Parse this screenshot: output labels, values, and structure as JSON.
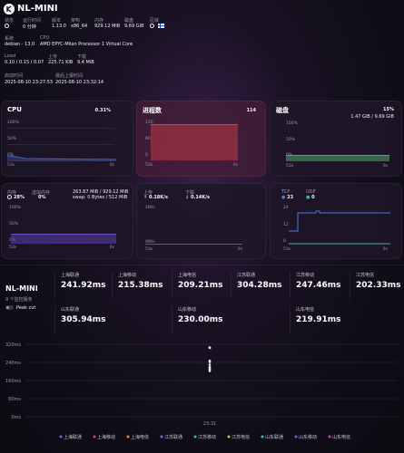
{
  "header": {
    "title": "NL-MINI",
    "status_label": "状态",
    "status_value": "0 分钟",
    "uptime_label": "运行时间",
    "version_label": "版本",
    "version_value": "1.13.0",
    "arch_label": "架构",
    "arch_value": "x86_64",
    "mem_label": "内存",
    "mem_value": "929.12 MiB",
    "disk_label": "磁盘",
    "disk_value": "9.69 GiB",
    "region_label": "区域",
    "system_label": "系统",
    "system_value": "debian - 13.0",
    "cpu_label": "CPU",
    "cpu_value": "AMD EPYC-Milan Processor 1 Virtual Core",
    "load_label": "Load",
    "load_value": "0.10 / 0.15 / 0.07",
    "up_label": "上传",
    "up_value": "225.71 KiB",
    "down_label": "下载",
    "down_value": "9.4 MiB",
    "boot_label": "启动时间",
    "boot_value": "2025-08-10 23:27:53",
    "report_label": "最后上报时间",
    "report_value": "2025-08-10 23:32:14"
  },
  "colors": {
    "accent_red": "#c0384a",
    "accent_green": "#3f8a5a",
    "accent_blue": "#4a5fc4",
    "accent_purple": "#5a3fa8"
  },
  "panels": {
    "cpu": {
      "title": "CPU",
      "value": "0.31%",
      "ticks": [
        "100%",
        "50%",
        "0%"
      ],
      "x_left": "53s",
      "x_right": "0s"
    },
    "proc": {
      "title": "进程数",
      "value": "114",
      "ticks": [
        "120",
        "60",
        "0"
      ],
      "x_left": "53s",
      "x_right": "0s"
    },
    "disk": {
      "title": "磁盘",
      "value": "15%",
      "sub": "1.47 GiB / 9.69 GiB",
      "ticks": [
        "100%",
        "50%",
        "0%"
      ],
      "x_left": "53s",
      "x_right": "0s"
    },
    "mem": {
      "title": "内存",
      "value": "28%",
      "swap_title": "虚拟内存",
      "swap_value": "0%",
      "detail": "263.87 MiB / 929.12 MiB",
      "swap_detail": "swap: 0 Bytes / 512 MiB",
      "ticks": [
        "100%",
        "50%",
        "0%"
      ],
      "x_left": "53s",
      "x_right": "0s"
    },
    "net": {
      "up_title": "上传",
      "up_value": "0.18K/s",
      "down_title": "下载",
      "down_value": "0.14K/s",
      "ticks": [
        "1M/s",
        "0M/s"
      ],
      "x_left": "53s",
      "x_right": "0s"
    },
    "tcp": {
      "tcp_title": "TCP",
      "tcp_value": "23",
      "udp_title": "UDP",
      "udp_value": "0",
      "ticks": [
        "24",
        "12",
        "0"
      ],
      "x_left": "53s",
      "x_right": "0s"
    }
  },
  "ping": {
    "server_name": "NL-MINI",
    "monitor_count": "9 个监控服务",
    "peak_cut": "Peak cut",
    "items": [
      {
        "name": "上海联通",
        "value": "241.92ms"
      },
      {
        "name": "上海移动",
        "value": "215.38ms"
      },
      {
        "name": "上海电信",
        "value": "209.21ms"
      },
      {
        "name": "江苏联通",
        "value": "304.28ms"
      },
      {
        "name": "江苏移动",
        "value": "247.46ms"
      },
      {
        "name": "江苏电信",
        "value": "202.33ms"
      },
      {
        "name": "山东联通",
        "value": "305.94ms"
      },
      {
        "name": "山东移动",
        "value": "230.00ms"
      },
      {
        "name": "山东电信",
        "value": "219.91ms"
      }
    ]
  },
  "chart_data": {
    "type": "scatter",
    "y_ticks": [
      "320ms",
      "240ms",
      "160ms",
      "80ms",
      "0ms"
    ],
    "ylim": [
      0,
      320
    ],
    "x_ticks": [
      "23:31"
    ],
    "grid": true,
    "legend_position": "bottom",
    "series": [
      {
        "name": "上海联通",
        "color": "#4a7bd8",
        "values": [
          241.92
        ]
      },
      {
        "name": "上海移动",
        "color": "#d8467a",
        "values": [
          215.38
        ]
      },
      {
        "name": "上海电信",
        "color": "#e08a3a",
        "values": [
          209.21
        ]
      },
      {
        "name": "江苏联通",
        "color": "#9a5ad8",
        "values": [
          304.28
        ]
      },
      {
        "name": "江苏移动",
        "color": "#3fb89a",
        "values": [
          247.46
        ]
      },
      {
        "name": "江苏电信",
        "color": "#d8c040",
        "values": [
          202.33
        ]
      },
      {
        "name": "山东联通",
        "color": "#4ab8d8",
        "values": [
          305.94
        ]
      },
      {
        "name": "山东移动",
        "color": "#5a6ad8",
        "values": [
          230.0
        ]
      },
      {
        "name": "山东电信",
        "color": "#c84ad8",
        "values": [
          219.91
        ]
      }
    ]
  }
}
